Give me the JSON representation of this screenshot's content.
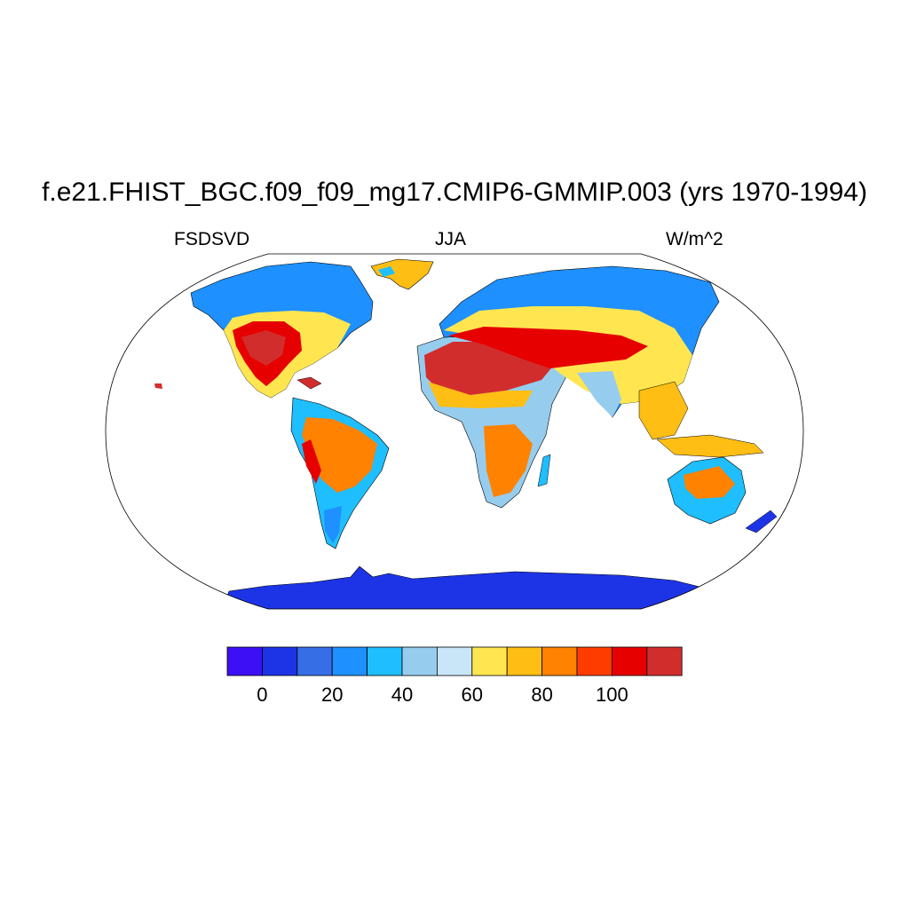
{
  "plot": {
    "title": "f.e21.FHIST_BGC.f09_f09_mg17.CMIP6-GMMIP.003 (yrs 1970-1994)",
    "left_label": "FSDSVD",
    "center_label": "JJA",
    "right_label": "W/m^2"
  },
  "map": {
    "projection": "Robinson",
    "variable": "FSDSVD",
    "season": "JJA",
    "units": "W/m^2",
    "ocean_masked": true
  },
  "colorbar": {
    "colors": [
      "#3d0ff5",
      "#1d34e6",
      "#366ee6",
      "#1e90ff",
      "#1ebeff",
      "#96cdee",
      "#c8e6f8",
      "#ffe650",
      "#ffbe14",
      "#ff8200",
      "#ff3c00",
      "#e60000",
      "#d22d2d"
    ],
    "tick_labels": [
      "0",
      "20",
      "40",
      "60",
      "80",
      "100"
    ]
  }
}
